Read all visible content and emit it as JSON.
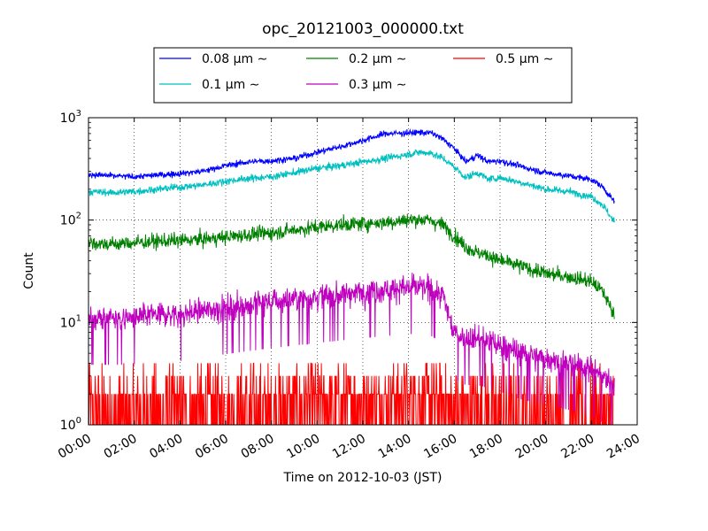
{
  "chart_data": {
    "type": "line",
    "title": "opc_20121003_000000.txt",
    "xlabel": "Time on 2012-10-03 (JST)",
    "ylabel": "Count",
    "x_unit": "hours",
    "xlim": [
      0,
      24
    ],
    "ylim": [
      1,
      1000
    ],
    "yscale": "log",
    "grid": true,
    "legend_position": "top-center",
    "x_tick_labels": [
      "00:00",
      "02:00",
      "04:00",
      "06:00",
      "08:00",
      "10:00",
      "12:00",
      "14:00",
      "16:00",
      "18:00",
      "20:00",
      "22:00",
      "24:00"
    ],
    "y_tick_labels": [
      {
        "base": "10",
        "exp": "0"
      },
      {
        "base": "10",
        "exp": "1"
      },
      {
        "base": "10",
        "exp": "2"
      },
      {
        "base": "10",
        "exp": "3"
      }
    ],
    "series": [
      {
        "name": "0.08 μm ∼",
        "color": "#0000ff",
        "x": [
          0,
          1,
          2,
          3,
          4,
          5,
          6,
          7,
          8,
          9,
          10,
          11,
          12,
          13,
          14,
          14.5,
          15,
          15.5,
          16,
          16.5,
          17,
          17.5,
          18,
          19,
          20,
          21,
          22,
          22.5,
          23
        ],
        "y": [
          280,
          270,
          265,
          275,
          285,
          300,
          340,
          370,
          380,
          400,
          460,
          520,
          600,
          700,
          710,
          720,
          710,
          620,
          500,
          370,
          430,
          370,
          380,
          330,
          290,
          270,
          250,
          210,
          150
        ],
        "noise": 0.03
      },
      {
        "name": "0.1 μm ∼",
        "color": "#00bfbf",
        "x": [
          0,
          1,
          2,
          3,
          4,
          5,
          6,
          7,
          8,
          9,
          10,
          11,
          12,
          13,
          14,
          14.5,
          15,
          15.5,
          16,
          16.5,
          17,
          17.5,
          18,
          19,
          20,
          21,
          22,
          22.5,
          23
        ],
        "y": [
          190,
          185,
          190,
          200,
          210,
          220,
          240,
          255,
          265,
          290,
          320,
          340,
          370,
          400,
          440,
          460,
          450,
          400,
          330,
          260,
          290,
          250,
          260,
          230,
          200,
          190,
          170,
          140,
          95
        ],
        "noise": 0.035
      },
      {
        "name": "0.2 μm ∼",
        "color": "#008000",
        "x": [
          0,
          1,
          2,
          3,
          4,
          5,
          6,
          7,
          8,
          9,
          10,
          11,
          12,
          13,
          14,
          14.5,
          15,
          15.5,
          16,
          16.5,
          17,
          17.5,
          18,
          19,
          20,
          21,
          22,
          22.5,
          23
        ],
        "y": [
          60,
          58,
          60,
          62,
          63,
          65,
          68,
          72,
          75,
          80,
          85,
          90,
          92,
          95,
          100,
          102,
          98,
          90,
          70,
          55,
          48,
          45,
          40,
          35,
          30,
          28,
          25,
          20,
          12
        ],
        "noise": 0.07
      },
      {
        "name": "0.3 μm ∼",
        "color": "#bf00bf",
        "x": [
          0,
          1,
          2,
          3,
          4,
          5,
          6,
          7,
          8,
          9,
          10,
          11,
          12,
          13,
          14,
          14.5,
          15,
          15.5,
          16,
          16.5,
          17,
          17.5,
          18,
          19,
          20,
          21,
          22,
          22.5,
          23
        ],
        "y": [
          11,
          11,
          11,
          12,
          12,
          13,
          14,
          15,
          16,
          17,
          18,
          19,
          20,
          21,
          22,
          22,
          21,
          18,
          8,
          7,
          7,
          6.5,
          6,
          5,
          4.5,
          4,
          3.5,
          3,
          2.5
        ],
        "noise": 0.12
      },
      {
        "name": "0.5 μm ∼",
        "color": "#ff0000",
        "x": [
          0,
          4,
          8,
          10,
          12,
          14,
          14.5,
          15,
          16,
          18,
          20,
          22,
          23
        ],
        "y": [
          1.2,
          1.3,
          1.5,
          1.7,
          1.9,
          2.2,
          2.3,
          2.1,
          1.5,
          1.3,
          1.2,
          1.1,
          1.0
        ],
        "noise": 0.18
      }
    ]
  }
}
